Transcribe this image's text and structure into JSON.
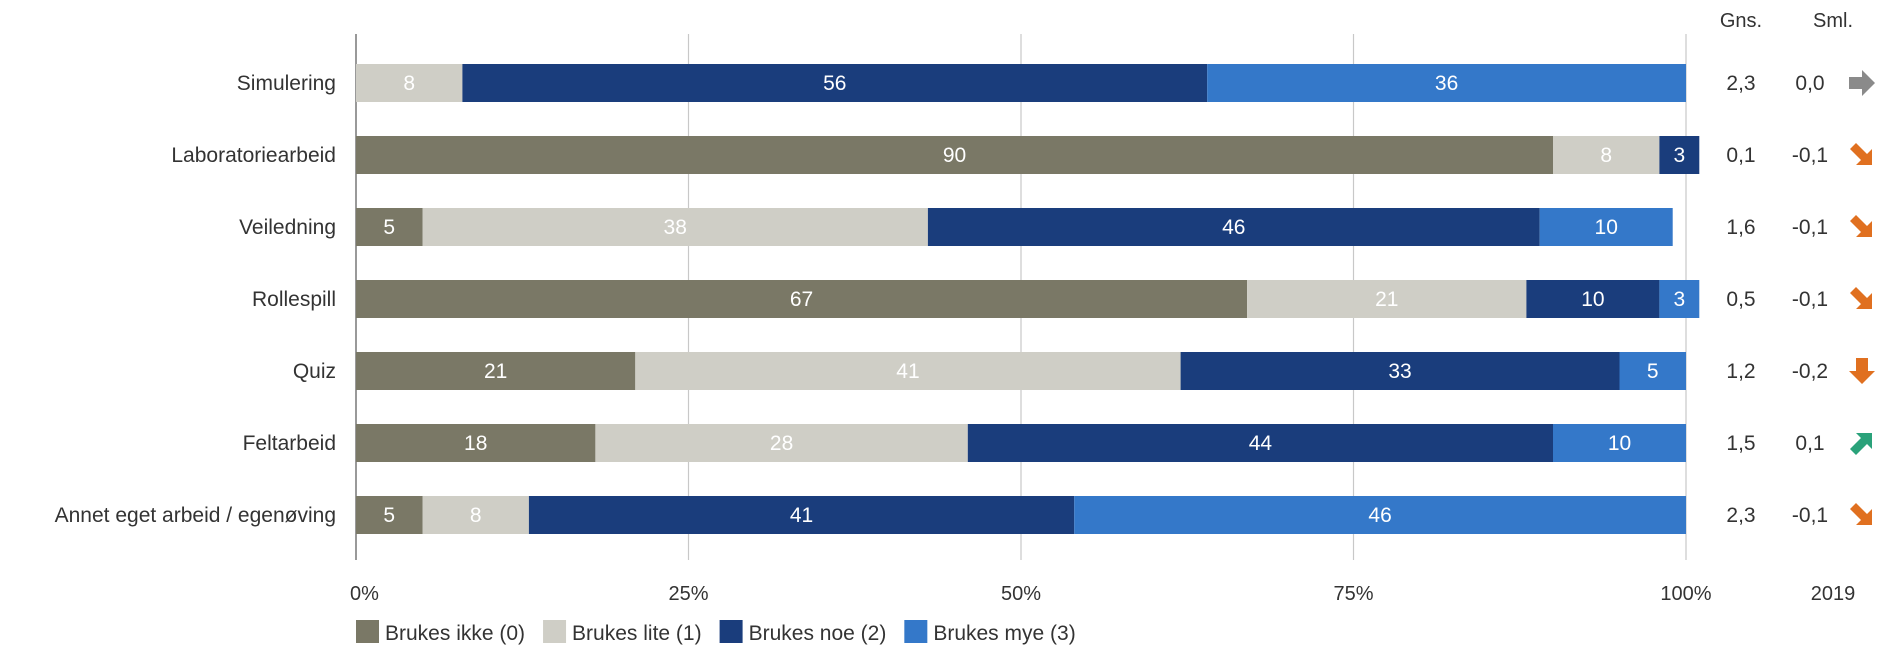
{
  "chart_data": {
    "type": "bar",
    "orientation": "horizontal",
    "stacked": true,
    "title": "",
    "categories": [
      "Simulering",
      "Laboratoriearbeid",
      "Veiledning",
      "Rollespill",
      "Quiz",
      "Feltarbeid",
      "Annet eget arbeid / egenøving"
    ],
    "series": [
      {
        "name": "Brukes ikke (0)",
        "color": "#7a7866",
        "text_color": "#ffffff",
        "values": [
          0,
          90,
          5,
          67,
          21,
          18,
          5
        ]
      },
      {
        "name": "Brukes lite (1)",
        "color": "#cfcec6",
        "text_color": "#ffffff",
        "values": [
          8,
          8,
          38,
          21,
          41,
          28,
          8
        ]
      },
      {
        "name": "Brukes noe (2)",
        "color": "#1a3d7c",
        "text_color": "#ffffff",
        "values": [
          56,
          3,
          46,
          10,
          33,
          44,
          41
        ]
      },
      {
        "name": "Brukes mye (3)",
        "color": "#3478c9",
        "text_color": "#ffffff",
        "values": [
          36,
          0,
          10,
          3,
          5,
          10,
          46
        ]
      }
    ],
    "xlim": [
      0,
      100
    ],
    "x_ticks": [
      "0%",
      "25%",
      "50%",
      "75%",
      "100%"
    ],
    "grid": true,
    "legend_position": "bottom-left",
    "side_columns": {
      "gns_header": "Gns.",
      "sml_header": "Sml.",
      "sml_footer": "2019",
      "gns": [
        "2,3",
        "0,1",
        "1,6",
        "0,5",
        "1,2",
        "1,5",
        "2,3"
      ],
      "sml": [
        "0,0",
        "-0,1",
        "-0,1",
        "-0,1",
        "-0,2",
        "0,1",
        "-0,1"
      ],
      "trend_icons": [
        "arrow-right-icon",
        "arrow-down-right-icon",
        "arrow-down-right-icon",
        "arrow-down-right-icon",
        "arrow-down-icon",
        "arrow-up-right-icon",
        "arrow-down-right-icon"
      ]
    },
    "trend_colors": {
      "arrow-right-icon": "#8a8a8a",
      "arrow-down-right-icon": "#e07020",
      "arrow-down-icon": "#e07020",
      "arrow-up-right-icon": "#2aa27a"
    }
  }
}
